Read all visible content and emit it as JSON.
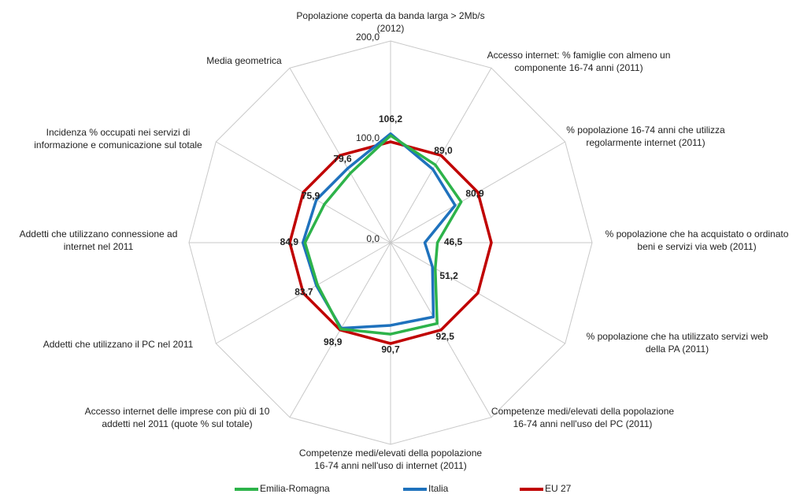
{
  "chart_data": {
    "type": "radar",
    "categories": [
      "Popolazione coperta da banda larga > 2Mb/s\n(2012)",
      "Accesso internet: % famiglie con almeno un\ncomponente 16-74 anni (2011)",
      "% popolazione 16-74 anni che utilizza\nregolarmente internet (2011)",
      "% popolazione che ha acquistato o ordinato\nbeni e servizi via web (2011)",
      "% popolazione che ha utilizzato servizi web\ndella PA (2011)",
      "Competenze medi/elevati della popolazione\n16-74 anni nell'uso del PC (2011)",
      "Competenze medi/elevati della popolazione\n16-74 anni nell'uso di internet (2011)",
      "Accesso internet delle imprese con più di 10\naddetti nel 2011 (quote % sul totale)",
      "Addetti che utilizzano il PC nel 2011",
      "Addetti che utilizzano connessione ad\ninternet nel 2011",
      "Incidenza % occupati nei servizi di\ninformazione e comunicazione sul totale",
      "Media geometrica"
    ],
    "series": [
      {
        "name": "Emilia-Romagna",
        "color": "#2db34a",
        "values": [
          106.2,
          89.0,
          80.9,
          46.5,
          51.2,
          92.5,
          90.7,
          98.9,
          83.7,
          84.9,
          75.9,
          79.6
        ],
        "value_labels": [
          "106,2",
          "89,0",
          "80,9",
          "46,5",
          "51,2",
          "92,5",
          "90,7",
          "98,9",
          "83,7",
          "84,9",
          "75,9",
          "79,6"
        ]
      },
      {
        "name": "Italia",
        "color": "#1f72bd",
        "values": [
          108,
          84,
          74,
          34,
          48,
          85,
          82,
          98,
          85,
          87,
          85,
          85
        ]
      },
      {
        "name": "EU 27",
        "color": "#c00000",
        "values": [
          100,
          100,
          100,
          100,
          100,
          100,
          100,
          100,
          100,
          100,
          100,
          100
        ]
      }
    ],
    "ylim": [
      0,
      200
    ],
    "yticks": [
      {
        "value": 0,
        "label": "0,0"
      },
      {
        "value": 100,
        "label": "100,0"
      },
      {
        "value": 200,
        "label": "200,0"
      }
    ],
    "grid": true
  }
}
